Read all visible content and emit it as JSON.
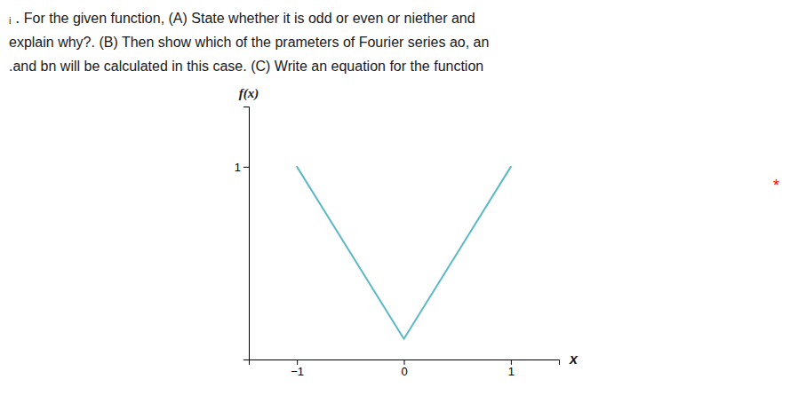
{
  "chart_data": {
    "type": "line",
    "title": [
      "ᵢ ․ For the given function, (A) State whether it is odd or even or niether and",
      "explain why?. (B) Then show which of the prameters of Fourier series ao, an",
      ".and bn will be calculated in this case. (C) Write an equation for the function"
    ],
    "annotations": [
      {
        "text": "*",
        "color": "red"
      }
    ],
    "x": [
      -1,
      0,
      1
    ],
    "values": [
      1,
      0,
      1
    ],
    "color": "#5BB8C8",
    "xlabel": "x",
    "ylabel": "f(x)",
    "xlim": [
      -1.45,
      1.45
    ],
    "ylim": [
      -0.12,
      1.35
    ],
    "xticks": [
      {
        "value": -1,
        "label": "−1"
      },
      0,
      1
    ],
    "yticks": [
      1
    ],
    "grid": false
  }
}
